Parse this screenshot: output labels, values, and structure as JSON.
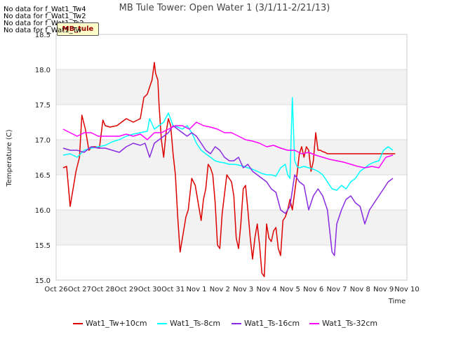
{
  "no_data": [
    "No data for f_Wat1_Tw4",
    "No data for f_Wat1_Tw2",
    "No data for f_Wat1_Ts2",
    "No data for f_Wat1_Tw"
  ],
  "badge": "MB_tule",
  "chart_data": {
    "type": "line",
    "title": "MB Tule Tower: Open Water 1 (3/1/11-2/21/13)",
    "xlabel": "Time",
    "ylabel": "Temperature (C)",
    "xlim": [
      0,
      15
    ],
    "ylim": [
      15.0,
      18.5
    ],
    "x_ticks": [
      0,
      1,
      2,
      3,
      4,
      5,
      6,
      7,
      8,
      9,
      10,
      11,
      12,
      13,
      14,
      15
    ],
    "x_tick_labels": [
      "Oct 26",
      "Oct 27",
      "Oct 28",
      "Oct 29",
      "Oct 30",
      "Oct 31",
      "Nov 1",
      "Nov 2",
      "Nov 3",
      "Nov 4",
      "Nov 5",
      "Nov 6",
      "Nov 7",
      "Nov 8",
      "Nov 9",
      "Nov 10"
    ],
    "y_ticks": [
      15.0,
      15.5,
      16.0,
      16.5,
      17.0,
      17.5,
      18.0,
      18.5
    ],
    "y_tick_labels": [
      "15.0",
      "15.5",
      "16.0",
      "16.5",
      "17.0",
      "17.5",
      "18.0",
      "18.5"
    ],
    "grid": true,
    "legend": "bottom",
    "series": [
      {
        "name": "Wat1_Tw+10cm",
        "color": "#dd0000",
        "x": [
          0.3,
          0.45,
          0.6,
          0.75,
          0.85,
          1.0,
          1.1,
          1.25,
          1.4,
          1.55,
          1.7,
          1.85,
          2.0,
          2.1,
          2.3,
          2.6,
          2.8,
          3.0,
          3.3,
          3.6,
          3.75,
          3.9,
          4.0,
          4.1,
          4.2,
          4.25,
          4.3,
          4.35,
          4.4,
          4.5,
          4.6,
          4.7,
          4.8,
          4.9,
          5.0,
          5.1,
          5.2,
          5.3,
          5.45,
          5.55,
          5.65,
          5.8,
          5.95,
          6.1,
          6.2,
          6.3,
          6.4,
          6.5,
          6.6,
          6.7,
          6.8,
          6.9,
          7.0,
          7.1,
          7.3,
          7.5,
          7.6,
          7.7,
          7.8,
          7.9,
          8.0,
          8.1,
          8.2,
          8.3,
          8.4,
          8.5,
          8.6,
          8.7,
          8.8,
          8.9,
          9.0,
          9.1,
          9.2,
          9.3,
          9.4,
          9.5,
          9.6,
          9.7,
          9.8,
          9.9,
          10.0,
          10.1,
          10.2,
          10.3,
          10.4,
          10.5,
          10.6,
          10.7,
          10.8,
          10.9,
          11.0,
          11.1,
          11.2,
          11.3,
          11.4,
          11.5,
          11.6,
          11.7,
          11.8,
          11.9,
          12.0,
          12.1,
          12.2,
          12.3,
          12.4,
          12.5,
          12.6,
          12.7,
          12.8,
          12.9,
          13.0,
          13.1,
          13.2,
          13.3,
          13.4,
          13.5,
          13.6,
          13.7,
          13.8,
          13.9,
          14.0,
          14.1,
          14.2,
          14.3,
          14.4,
          14.5
        ],
        "y": [
          16.6,
          16.62,
          16.05,
          16.35,
          16.55,
          16.75,
          17.35,
          17.15,
          16.85,
          16.9,
          16.9,
          16.88,
          17.28,
          17.2,
          17.18,
          17.2,
          17.25,
          17.3,
          17.25,
          17.3,
          17.6,
          17.65,
          17.75,
          17.85,
          18.1,
          17.95,
          17.9,
          17.85,
          17.5,
          17.0,
          16.75,
          17.1,
          17.3,
          17.2,
          16.8,
          16.5,
          15.9,
          15.4,
          15.7,
          15.9,
          16.0,
          16.45,
          16.35,
          16.05,
          15.85,
          16.15,
          16.3,
          16.65,
          16.6,
          16.5,
          16.1,
          15.5,
          15.45,
          15.95,
          16.5,
          16.4,
          16.2,
          15.6,
          15.45,
          15.8,
          16.3,
          16.35,
          16.0,
          15.6,
          15.3,
          15.6,
          15.8,
          15.5,
          15.1,
          15.05,
          15.8,
          15.6,
          15.55,
          15.7,
          15.75,
          15.45,
          15.35,
          15.85,
          15.9,
          16.0,
          16.15,
          16.0,
          16.25,
          16.5,
          16.8,
          16.9,
          16.75,
          16.9,
          16.85,
          16.55,
          16.7,
          17.1,
          16.85,
          16.85,
          16.83,
          16.82,
          16.8,
          16.8,
          16.8,
          16.8,
          16.8,
          16.8,
          16.8,
          16.8,
          16.8,
          16.8,
          16.8,
          16.8,
          16.8,
          16.8,
          16.8,
          16.8,
          16.8,
          16.8,
          16.8,
          16.8,
          16.8,
          16.8,
          16.8,
          16.8,
          16.8,
          16.8,
          16.8,
          16.8,
          16.8,
          16.8
        ]
      },
      {
        "name": "Wat1_Ts-8cm",
        "color": "#00ffff",
        "x": [
          0.3,
          0.6,
          0.9,
          1.2,
          1.5,
          1.8,
          2.1,
          2.4,
          2.7,
          3.0,
          3.3,
          3.6,
          3.9,
          4.0,
          4.2,
          4.4,
          4.6,
          4.8,
          5.0,
          5.2,
          5.4,
          5.6,
          5.8,
          6.0,
          6.2,
          6.4,
          6.6,
          6.8,
          7.0,
          7.2,
          7.4,
          7.6,
          7.8,
          8.0,
          8.2,
          8.4,
          8.6,
          8.8,
          9.0,
          9.2,
          9.4,
          9.6,
          9.8,
          9.9,
          10.0,
          10.1,
          10.2,
          10.3,
          10.4,
          10.6,
          10.8,
          11.0,
          11.2,
          11.4,
          11.6,
          11.8,
          12.0,
          12.2,
          12.4,
          12.6,
          12.8,
          13.0,
          13.2,
          13.4,
          13.6,
          13.8,
          14.0,
          14.2,
          14.4
        ],
        "y": [
          16.78,
          16.8,
          16.75,
          16.85,
          16.88,
          16.9,
          16.92,
          16.97,
          17.0,
          17.05,
          17.08,
          17.1,
          17.12,
          17.3,
          17.15,
          17.2,
          17.25,
          17.38,
          17.2,
          17.18,
          17.15,
          17.2,
          17.1,
          16.95,
          16.85,
          16.8,
          16.75,
          16.7,
          16.68,
          16.67,
          16.65,
          16.65,
          16.64,
          16.62,
          16.6,
          16.58,
          16.55,
          16.52,
          16.5,
          16.5,
          16.48,
          16.6,
          16.65,
          16.5,
          16.45,
          17.6,
          16.7,
          16.62,
          16.6,
          16.62,
          16.6,
          16.58,
          16.55,
          16.5,
          16.4,
          16.3,
          16.28,
          16.35,
          16.3,
          16.4,
          16.45,
          16.55,
          16.6,
          16.65,
          16.68,
          16.7,
          16.85,
          16.9,
          16.85
        ]
      },
      {
        "name": "Wat1_Ts-16cm",
        "color": "#8a2be2",
        "x": [
          0.3,
          0.6,
          0.9,
          1.2,
          1.5,
          1.8,
          2.1,
          2.4,
          2.7,
          3.0,
          3.3,
          3.6,
          3.8,
          4.0,
          4.2,
          4.4,
          4.6,
          4.8,
          5.0,
          5.2,
          5.4,
          5.6,
          5.8,
          6.0,
          6.2,
          6.4,
          6.6,
          6.8,
          7.0,
          7.2,
          7.4,
          7.6,
          7.8,
          8.0,
          8.2,
          8.4,
          8.6,
          8.8,
          9.0,
          9.2,
          9.4,
          9.6,
          9.8,
          10.0,
          10.2,
          10.4,
          10.6,
          10.8,
          11.0,
          11.2,
          11.4,
          11.6,
          11.8,
          11.9,
          12.0,
          12.2,
          12.4,
          12.6,
          12.8,
          13.0,
          13.2,
          13.4,
          13.6,
          13.8,
          14.0,
          14.2,
          14.4
        ],
        "y": [
          16.88,
          16.85,
          16.85,
          16.82,
          16.9,
          16.88,
          16.88,
          16.85,
          16.82,
          16.9,
          16.95,
          16.92,
          16.95,
          16.75,
          16.95,
          17.0,
          17.05,
          17.1,
          17.2,
          17.15,
          17.1,
          17.05,
          17.1,
          17.05,
          16.95,
          16.85,
          16.8,
          16.9,
          16.85,
          16.75,
          16.7,
          16.7,
          16.75,
          16.6,
          16.65,
          16.55,
          16.5,
          16.45,
          16.4,
          16.3,
          16.25,
          16.0,
          15.95,
          16.05,
          16.5,
          16.4,
          16.35,
          16.0,
          16.2,
          16.3,
          16.2,
          16.0,
          15.4,
          15.35,
          15.8,
          16.0,
          16.15,
          16.2,
          16.1,
          16.05,
          15.8,
          16.0,
          16.1,
          16.2,
          16.3,
          16.4,
          16.45
        ]
      },
      {
        "name": "Wat1_Ts-32cm",
        "color": "#ff00ff",
        "x": [
          0.3,
          0.6,
          0.9,
          1.2,
          1.5,
          1.8,
          2.1,
          2.4,
          2.7,
          3.0,
          3.3,
          3.6,
          3.9,
          4.2,
          4.5,
          4.8,
          5.1,
          5.4,
          5.7,
          6.0,
          6.3,
          6.6,
          6.9,
          7.2,
          7.5,
          7.8,
          8.1,
          8.4,
          8.7,
          9.0,
          9.3,
          9.6,
          9.9,
          10.2,
          10.5,
          10.8,
          11.1,
          11.4,
          11.7,
          12.0,
          12.3,
          12.6,
          12.9,
          13.2,
          13.5,
          13.8,
          14.1,
          14.4
        ],
        "y": [
          17.15,
          17.1,
          17.05,
          17.1,
          17.1,
          17.05,
          17.05,
          17.05,
          17.05,
          17.08,
          17.05,
          17.08,
          17.0,
          17.1,
          17.1,
          17.15,
          17.2,
          17.2,
          17.15,
          17.25,
          17.2,
          17.18,
          17.15,
          17.1,
          17.1,
          17.05,
          17.0,
          16.98,
          16.95,
          16.9,
          16.92,
          16.88,
          16.85,
          16.85,
          16.8,
          16.82,
          16.78,
          16.75,
          16.72,
          16.7,
          16.68,
          16.65,
          16.62,
          16.6,
          16.62,
          16.6,
          16.75,
          16.78
        ]
      }
    ]
  }
}
